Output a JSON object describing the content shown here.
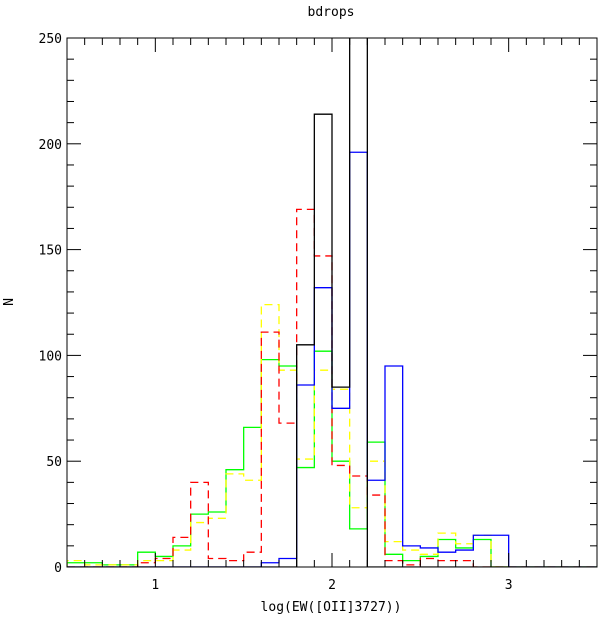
{
  "chart_data": {
    "type": "histogram",
    "title": "bdrops",
    "xlabel": "log(EW([OII]3727))",
    "ylabel": "N",
    "xlim": [
      0.5,
      3.5
    ],
    "ylim": [
      0,
      250
    ],
    "x_ticks": [
      1,
      2,
      3
    ],
    "y_ticks": [
      0,
      50,
      100,
      150,
      200,
      250
    ],
    "grid": false,
    "legend": "none",
    "bin_edges": [
      0.5,
      0.6,
      0.7,
      0.8,
      0.9,
      1.0,
      1.1,
      1.2,
      1.3,
      1.4,
      1.5,
      1.6,
      1.7,
      1.8,
      1.9,
      2.0,
      2.1,
      2.2,
      2.3,
      2.4,
      2.5,
      2.6,
      2.7,
      2.8,
      2.9,
      3.0,
      3.1,
      3.2,
      3.3,
      3.4,
      3.5
    ],
    "series": [
      {
        "color": "#000000",
        "dash": "solid",
        "values": [
          0,
          0,
          0,
          0,
          0,
          0,
          0,
          0,
          0,
          0,
          0,
          0,
          0,
          105,
          214,
          85,
          260,
          0,
          0,
          0,
          0,
          0,
          0,
          0,
          0,
          0,
          0,
          0,
          0,
          0
        ]
      },
      {
        "color": "#0000ff",
        "dash": "solid",
        "values": [
          0,
          0,
          0,
          0,
          0,
          0,
          0,
          0,
          0,
          0,
          0,
          2,
          4,
          86,
          132,
          75,
          196,
          41,
          95,
          10,
          9,
          7,
          8,
          15,
          15,
          0,
          0,
          0,
          0,
          0
        ]
      },
      {
        "color": "#00ff00",
        "dash": "solid",
        "values": [
          2,
          2,
          1,
          1,
          7,
          5,
          10,
          25,
          26,
          46,
          66,
          98,
          95,
          47,
          102,
          50,
          18,
          59,
          6,
          3,
          5,
          13,
          9,
          13,
          0,
          0,
          0,
          0,
          0,
          0
        ]
      },
      {
        "color": "#ffff00",
        "dash": "dashed",
        "values": [
          3,
          1,
          1,
          1,
          3,
          3,
          8,
          21,
          23,
          44,
          41,
          124,
          93,
          51,
          93,
          84,
          28,
          50,
          12,
          8,
          6,
          16,
          11,
          15,
          0,
          0,
          0,
          0,
          0,
          0
        ]
      },
      {
        "color": "#ff0000",
        "dash": "dashed",
        "values": [
          0,
          0,
          0,
          0,
          2,
          4,
          14,
          40,
          4,
          3,
          7,
          111,
          68,
          169,
          147,
          48,
          43,
          34,
          3,
          1,
          4,
          3,
          3,
          0,
          0,
          0,
          0,
          0,
          0,
          0
        ]
      }
    ]
  }
}
